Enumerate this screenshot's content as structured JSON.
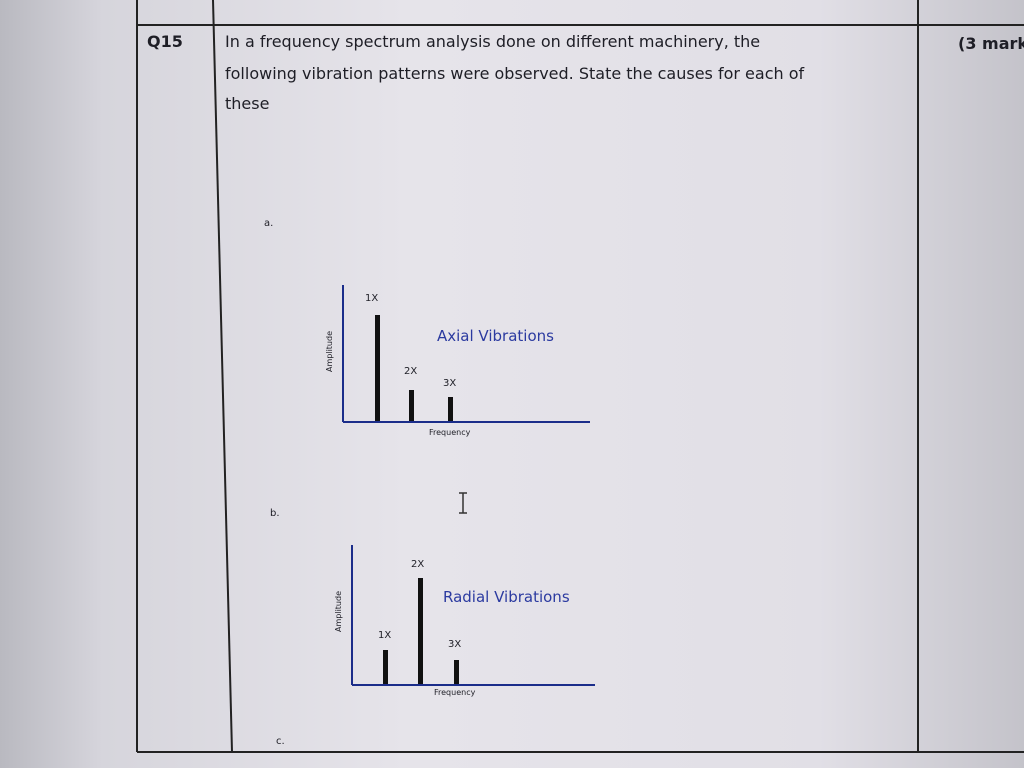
{
  "question": {
    "number": "Q15",
    "text_lines": [
      "In a frequency spectrum analysis done on different machinery, the",
      "following vibration patterns were observed. State the causes for each of",
      "these"
    ],
    "marks": "(3 mark"
  },
  "parts": [
    {
      "label": "a.",
      "title": "Axial Vibrations",
      "y_axis_label": "Amplitude",
      "x_axis_label": "Frequency",
      "peaks": [
        "1X",
        "2X",
        "3X"
      ]
    },
    {
      "label": "b.",
      "title": "Radial Vibrations",
      "y_axis_label": "Amplitude",
      "x_axis_label": "Frequency",
      "peaks": [
        "1X",
        "2X",
        "3X"
      ]
    },
    {
      "label": "c."
    }
  ]
}
